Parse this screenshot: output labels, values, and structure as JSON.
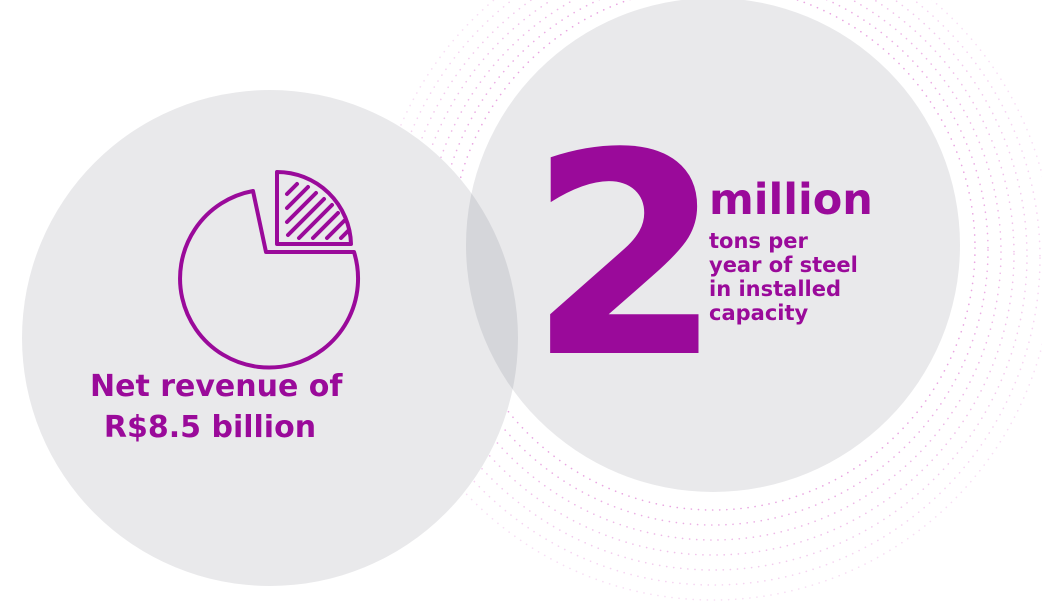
{
  "colors": {
    "accent": "#9a0a9a",
    "circle_fill": "#e9e9eb",
    "overlap_fill": "#d7d8dc",
    "dots": "#e8a0df"
  },
  "icons": [
    "pie-chart-icon"
  ],
  "revenue": {
    "line1": "Net revenue of",
    "line2": "R$8.5 billion"
  },
  "capacity": {
    "number": "2",
    "unit": "million",
    "desc_lines": [
      "tons per",
      "year of steel",
      "in installed",
      "capacity"
    ]
  }
}
